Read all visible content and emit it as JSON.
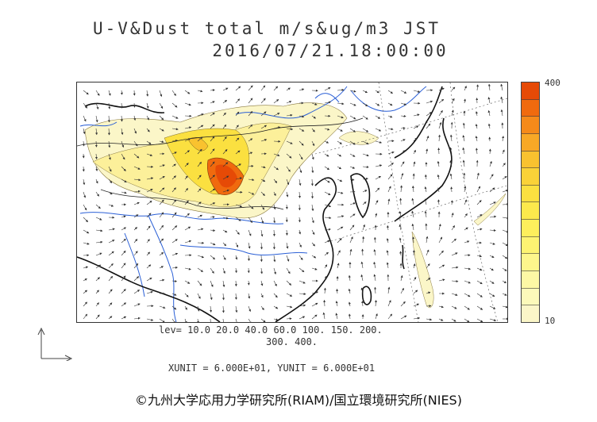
{
  "title": {
    "line1": "U-V&Dust total m/s&ug/m3 JST",
    "line2": "2016/07/21.18:00:00"
  },
  "colorbar": {
    "max_label": "400",
    "min_label": "10",
    "colors": [
      "#e64a06",
      "#f06a0e",
      "#f58a1a",
      "#f8a826",
      "#f9c22f",
      "#fad238",
      "#fbe040",
      "#fce94c",
      "#fdef5c",
      "#fdf372",
      "#fdf68c",
      "#fdf8a5",
      "#fcf9ba",
      "#fbf6c8"
    ]
  },
  "levels": {
    "line1": "lev= 10.0 20.0 40.0 60.0 100. 150. 200.",
    "line2": "300. 400."
  },
  "units_text": "XUNIT = 6.000E+01, YUNIT = 6.000E+01",
  "credit": "©九州大学応用力学研究所(RIAM)/国立環境研究所(NIES)",
  "icons": {
    "axes": "axes-corner-icon"
  }
}
